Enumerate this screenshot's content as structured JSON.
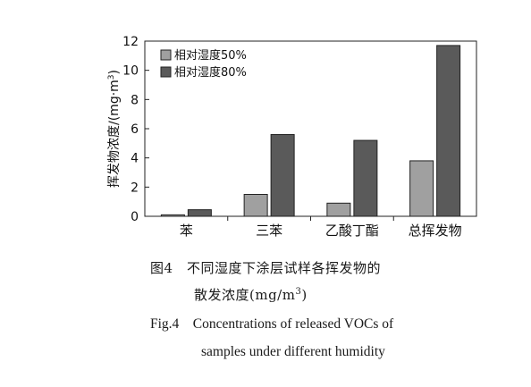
{
  "chart_data": {
    "type": "bar",
    "title": "",
    "xlabel": "",
    "ylabel": "挥发物浓度/(mg·m",
    "ylabel_sup": "3",
    "ylabel_tail": ")",
    "ylim": [
      0,
      12
    ],
    "yticks": [
      "0",
      "2",
      "4",
      "6",
      "8",
      "10",
      "12"
    ],
    "grid": false,
    "legend_position": "top-left",
    "categories": [
      "苯",
      "三苯",
      "乙酸丁酯",
      "总挥发物"
    ],
    "series": [
      {
        "name": "相对湿度50%",
        "color": "#a0a0a0",
        "values": [
          0.1,
          1.5,
          0.9,
          3.8
        ]
      },
      {
        "name": "相对湿度80%",
        "color": "#5a5a5a",
        "values": [
          0.45,
          5.6,
          5.2,
          11.7
        ]
      }
    ]
  },
  "caption": {
    "cn_line1": "图4　不同湿度下涂层试样各挥发物的",
    "cn_line2_text": "散发浓度(mg/m",
    "cn_line2_sup": "3",
    "cn_line2_tail": ")",
    "en_line1": "Fig.4　Concentrations of released VOCs of",
    "en_line2": "samples under different humidity"
  }
}
